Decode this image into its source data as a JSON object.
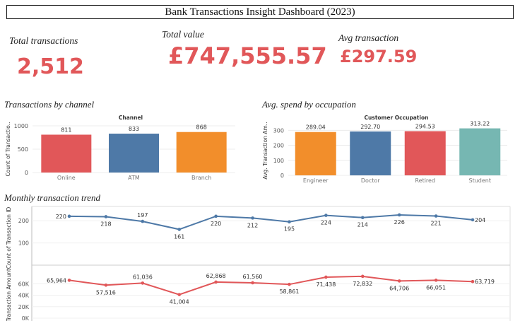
{
  "dashboard": {
    "title": "Bank Transactions Insight Dashboard (2023)"
  },
  "kpis": {
    "total_transactions": {
      "label": "Total transactions",
      "value": "2,512"
    },
    "total_value": {
      "label": "Total value",
      "value": "£747,555.57"
    },
    "avg_transaction": {
      "label": "Avg transaction",
      "value": "£297.59"
    }
  },
  "colors": {
    "kpi": "#e15759",
    "online": "#e15759",
    "atm": "#4e79a7",
    "branch": "#f28e2b",
    "engineer": "#f28e2b",
    "doctor": "#4e79a7",
    "retired": "#e15759",
    "student": "#76b7b2",
    "count_line": "#4e79a7",
    "amount_line": "#e15759"
  },
  "sections": {
    "channel": "Transactions by channel",
    "occupation": "Avg. spend by occupation",
    "monthly": "Monthly transaction trend"
  },
  "chart_data": [
    {
      "type": "bar",
      "header": "Channel",
      "ylabel": "Count of Transactio..",
      "categories": [
        "Online",
        "ATM",
        "Branch"
      ],
      "values": [
        811,
        833,
        868
      ],
      "value_labels": [
        "811",
        "833",
        "868"
      ],
      "yticks": [
        0,
        500,
        1000
      ],
      "ylim": [
        0,
        1000
      ]
    },
    {
      "type": "bar",
      "header": "Customer Occupation",
      "ylabel": "Avg. Transaction Am..",
      "categories": [
        "Engineer",
        "Doctor",
        "Retired",
        "Student"
      ],
      "values": [
        289.04,
        292.7,
        294.53,
        313.22
      ],
      "value_labels": [
        "289.04",
        "292.70",
        "294.53",
        "313.22"
      ],
      "yticks": [
        0,
        100,
        200,
        300
      ],
      "ylim": [
        0,
        330
      ]
    },
    {
      "type": "line",
      "ylabel": "Count of Transaction ID",
      "values": [
        220,
        218,
        197,
        161,
        220,
        212,
        195,
        224,
        214,
        226,
        221,
        204
      ],
      "value_labels": [
        "220",
        "218",
        "197",
        "161",
        "220",
        "212",
        "195",
        "224",
        "214",
        "226",
        "221",
        "204"
      ],
      "yticks": [
        100,
        200
      ],
      "ylim": [
        0,
        245
      ]
    },
    {
      "type": "line",
      "ylabel": "Transaction Amount",
      "values": [
        65964,
        57516,
        61036,
        41004,
        62868,
        61560,
        58861,
        71438,
        72832,
        64706,
        66051,
        63719
      ],
      "value_labels": [
        "65,964",
        "57,516",
        "61,036",
        "41,004",
        "62,868",
        "61,560",
        "58,861",
        "71,438",
        "72,832",
        "64,706",
        "66,051",
        "63,719"
      ],
      "yticks": [
        0,
        20000,
        40000,
        60000
      ],
      "ytick_labels": [
        "0K",
        "20K",
        "40K",
        "60K"
      ],
      "ylim": [
        0,
        80000
      ]
    }
  ]
}
